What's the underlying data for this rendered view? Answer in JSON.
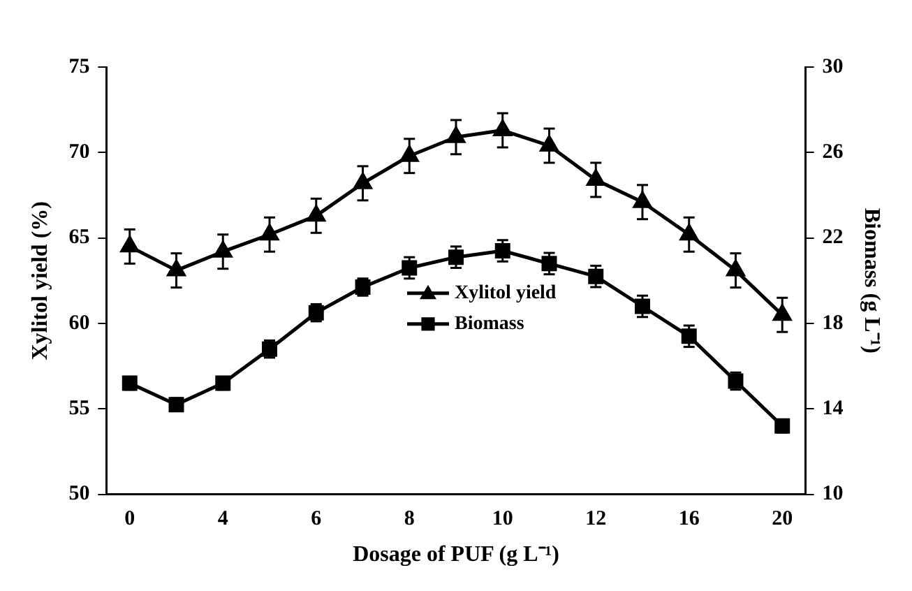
{
  "chart_data": {
    "type": "line",
    "xlabel": "Dosage of PUF (g L⁻¹)",
    "ylabel": "Xylitol yield (%)",
    "y2label": "Biomass (g L⁻¹)",
    "categories": [
      "0",
      null,
      "4",
      null,
      "6",
      null,
      "8",
      null,
      "10",
      null,
      "12",
      null,
      "16",
      null,
      "20"
    ],
    "series": [
      {
        "name": "Xylitol yield",
        "color": "#000000",
        "marker": "triangle",
        "values": [
          64.5,
          63.1,
          64.2,
          65.2,
          66.3,
          68.2,
          69.8,
          70.9,
          71.3,
          70.4,
          68.4,
          67.1,
          65.2,
          63.1,
          60.5
        ],
        "errors": [
          1,
          1,
          1,
          1,
          1,
          1,
          1,
          1,
          1,
          1,
          1,
          1,
          1,
          1,
          1
        ]
      },
      {
        "name": "Biomass",
        "color": "#000000",
        "marker": "square",
        "axis": "y2",
        "values": [
          15.2,
          14.2,
          15.2,
          16.8,
          18.5,
          19.7,
          20.6,
          21.1,
          21.4,
          20.8,
          20.2,
          18.8,
          17.4,
          15.3,
          13.2
        ],
        "errors": [
          0.3,
          0.3,
          0.3,
          0.4,
          0.4,
          0.4,
          0.5,
          0.5,
          0.5,
          0.5,
          0.5,
          0.5,
          0.5,
          0.4,
          0.3
        ]
      }
    ],
    "ylim": [
      50,
      75
    ],
    "yticks": [
      50,
      55,
      60,
      65,
      70,
      75
    ],
    "y2lim": [
      10,
      30
    ],
    "y2ticks": [
      10,
      14,
      18,
      22,
      26,
      30
    ],
    "legend": "center",
    "grid": false,
    "line_style": "solid"
  }
}
